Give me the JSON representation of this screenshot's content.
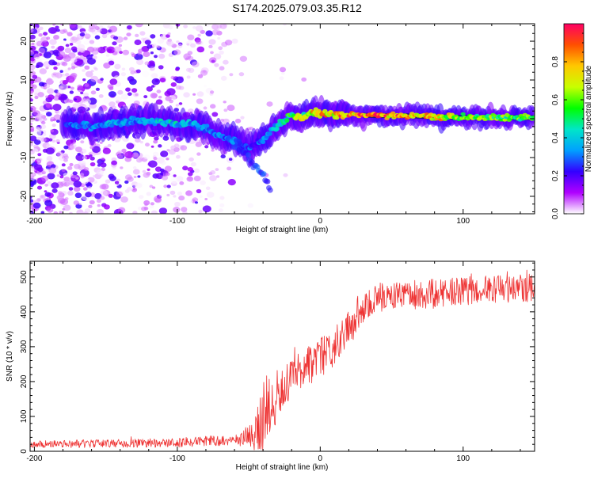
{
  "title": "S174.2025.079.03.35.R12",
  "chart_data": [
    {
      "type": "heatmap",
      "xlabel": "Height of straight line (km)",
      "ylabel": "Frequency (Hz)",
      "xlim": [
        -203,
        150
      ],
      "ylim": [
        -24.5,
        24.5
      ],
      "x_ticks": [
        -200,
        -100,
        0,
        100
      ],
      "y_ticks": [
        -20,
        -10,
        0,
        10,
        20
      ],
      "colorbar": {
        "label": "Normalized spectral amplitude",
        "range": [
          0,
          1
        ],
        "ticks": [
          "0.0",
          "0.2",
          "0.4",
          "0.6",
          "0.8"
        ],
        "tick_values": [
          0,
          0.2,
          0.4,
          0.6,
          0.8
        ],
        "colors": [
          "#ffffff",
          "#b000ff",
          "#3300ff",
          "#00a0ff",
          "#00e6c8",
          "#00ff00",
          "#c8ff00",
          "#ffc800",
          "#ff5000",
          "#ff0064"
        ]
      },
      "ridge": {
        "x": [
          -180,
          -170,
          -160,
          -150,
          -140,
          -130,
          -120,
          -110,
          -100,
          -90,
          -80,
          -70,
          -60,
          -55,
          -50,
          -45,
          -40,
          -35,
          -30,
          -25,
          -20,
          -15,
          -10,
          -5,
          0,
          5,
          10,
          20,
          40,
          60,
          80,
          100,
          150
        ],
        "y": [
          -1.5,
          -1.5,
          -2,
          -1.5,
          -1,
          -0.5,
          -0.5,
          -1,
          -1.5,
          -1.5,
          -2.5,
          -4.5,
          -5.5,
          -6.5,
          -7.5,
          -6.5,
          -5.5,
          -3.5,
          -2,
          -0.5,
          1,
          0.5,
          1,
          1.5,
          1.5,
          1.5,
          1,
          1,
          0.8,
          0.8,
          0.5,
          0.3,
          0.3
        ],
        "amplitude": [
          0.3,
          0.35,
          0.35,
          0.4,
          0.35,
          0.35,
          0.4,
          0.45,
          0.45,
          0.4,
          0.35,
          0.35,
          0.35,
          0.3,
          0.3,
          0.3,
          0.35,
          0.4,
          0.45,
          0.5,
          0.6,
          0.7,
          0.7,
          0.8,
          0.85,
          0.85,
          0.85,
          0.9,
          0.95,
          0.9,
          0.8,
          0.7,
          0.6
        ]
      },
      "branch": {
        "x": [
          -62,
          -55,
          -50,
          -45,
          -40,
          -35
        ],
        "y": [
          -6,
          -8,
          -10,
          -12.5,
          -15,
          -17.5
        ]
      },
      "noise_extent": {
        "x": [
          -203,
          -50
        ],
        "y": [
          -24.5,
          24.5
        ]
      }
    },
    {
      "type": "line",
      "xlabel": "Height of straight line (km)",
      "ylabel": "SNR (10 * v/v)",
      "xlim": [
        -203,
        150
      ],
      "ylim": [
        0,
        545
      ],
      "x_ticks": [
        -200,
        -100,
        0,
        100
      ],
      "y_ticks": [
        0,
        100,
        200,
        300,
        400,
        500
      ],
      "color": "#ee3333",
      "trend": {
        "x": [
          -203,
          -100,
          -80,
          -60,
          -50,
          -40,
          -35,
          -30,
          -20,
          -10,
          0,
          10,
          20,
          30,
          40,
          60,
          100,
          150
        ],
        "y": [
          20,
          25,
          30,
          30,
          45,
          90,
          140,
          160,
          210,
          240,
          265,
          300,
          360,
          415,
          440,
          445,
          460,
          470
        ]
      },
      "noise_amplitude": {
        "x": [
          -203,
          -60,
          -50,
          -40,
          -30,
          0,
          30,
          150
        ],
        "y": [
          10,
          15,
          30,
          110,
          80,
          60,
          45,
          40
        ]
      }
    }
  ]
}
